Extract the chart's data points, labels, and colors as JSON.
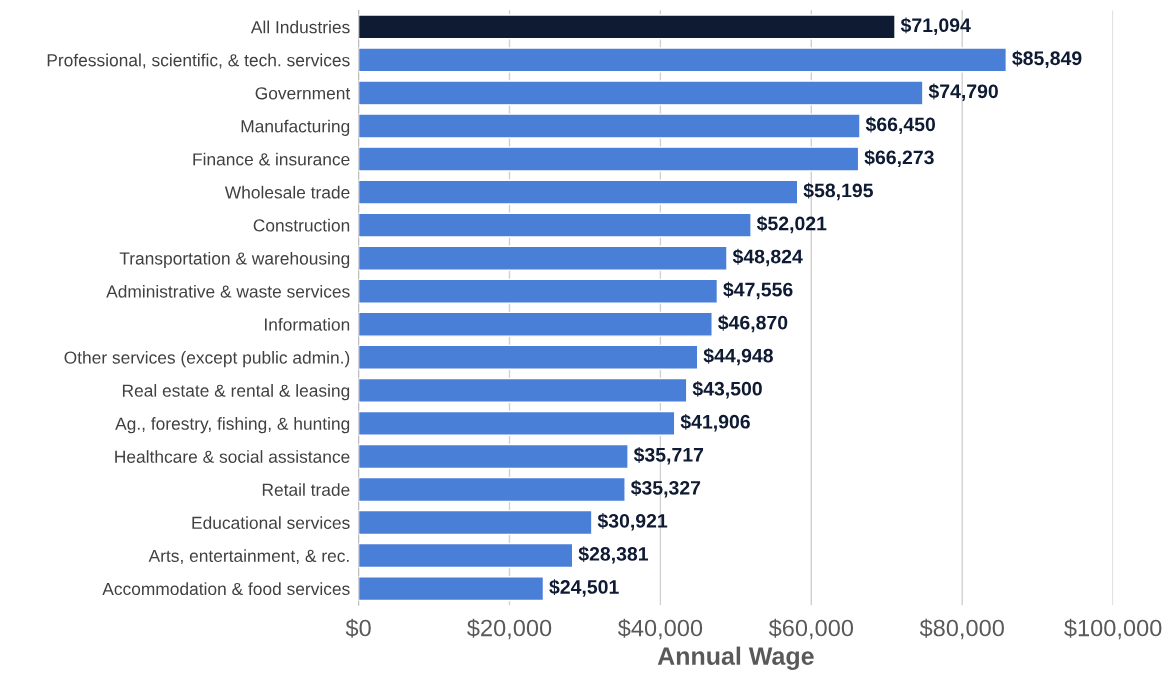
{
  "chart_data": {
    "type": "bar",
    "orientation": "horizontal",
    "xlabel": "Annual Wage",
    "categories": [
      "All Industries",
      "Professional, scientific, & tech. services",
      "Government",
      "Manufacturing",
      "Finance & insurance",
      "Wholesale trade",
      "Construction",
      "Transportation & warehousing",
      "Administrative & waste services",
      "Information",
      "Other services (except public admin.)",
      "Real estate & rental & leasing",
      "Ag., forestry, fishing, & hunting",
      "Healthcare & social assistance",
      "Retail trade",
      "Educational services",
      "Arts, entertainment, & rec.",
      "Accommodation & food services"
    ],
    "values": [
      71094,
      85849,
      74790,
      66450,
      66273,
      58195,
      52021,
      48824,
      47556,
      46870,
      44948,
      43500,
      41906,
      35717,
      35327,
      30921,
      28381,
      24501
    ],
    "value_labels": [
      "$71,094",
      "$85,849",
      "$74,790",
      "$66,450",
      "$66,273",
      "$58,195",
      "$52,021",
      "$48,824",
      "$47,556",
      "$46,870",
      "$44,948",
      "$43,500",
      "$41,906",
      "$35,717",
      "$35,327",
      "$30,921",
      "$28,381",
      "$24,501"
    ],
    "colors": [
      "#0f1a33",
      "#4a7fd8",
      "#4a7fd8",
      "#4a7fd8",
      "#4a7fd8",
      "#4a7fd8",
      "#4a7fd8",
      "#4a7fd8",
      "#4a7fd8",
      "#4a7fd8",
      "#4a7fd8",
      "#4a7fd8",
      "#4a7fd8",
      "#4a7fd8",
      "#4a7fd8",
      "#4a7fd8",
      "#4a7fd8",
      "#4a7fd8"
    ],
    "xlim": [
      0,
      100000
    ],
    "xticks": [
      {
        "value": 0,
        "label": "$0"
      },
      {
        "value": 20000,
        "label": "$20,000"
      },
      {
        "value": 40000,
        "label": "$40,000"
      },
      {
        "value": 60000,
        "label": "$60,000"
      },
      {
        "value": 80000,
        "label": "$80,000"
      },
      {
        "value": 100000,
        "label": "$100,000"
      }
    ],
    "grid": "x"
  }
}
